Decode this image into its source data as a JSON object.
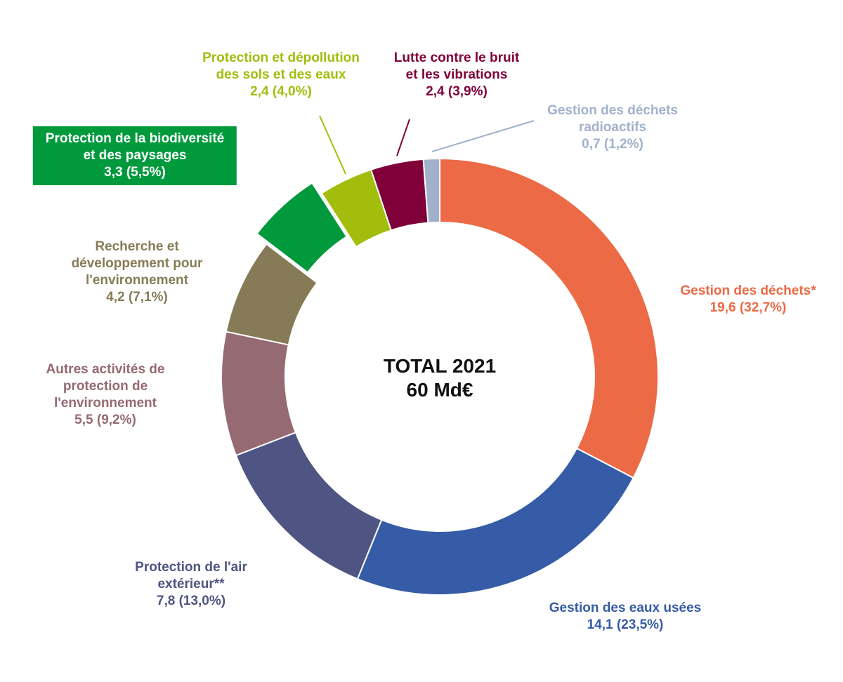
{
  "chart_data": {
    "type": "pie",
    "donut": true,
    "center_text": [
      "TOTAL 2021",
      "60 Md€"
    ],
    "unit": "Md€",
    "slices": [
      {
        "label": [
          "Gestion des déchets*"
        ],
        "value": 19.6,
        "percent": 32.7,
        "value_text": "19,6 (32,7%)",
        "color": "#ec6a45"
      },
      {
        "label": [
          "Gestion des eaux usées"
        ],
        "value": 14.1,
        "percent": 23.5,
        "value_text": "14,1 (23,5%)",
        "color": "#365ca7"
      },
      {
        "label": [
          "Protection de l'air",
          "extérieur**"
        ],
        "value": 7.8,
        "percent": 13.0,
        "value_text": "7,8 (13,0%)",
        "color": "#4f5582",
        "text_color": "#4f5582"
      },
      {
        "label": [
          "Autres activités de",
          "protection de",
          "l'environnement"
        ],
        "value": 5.5,
        "percent": 9.2,
        "value_text": "5,5 (9,2%)",
        "color": "#956a72"
      },
      {
        "label": [
          "Recherche et",
          "développement pour",
          "l'environnement"
        ],
        "value": 4.2,
        "percent": 7.1,
        "value_text": "4,2 (7,1%)",
        "color": "#877b57"
      },
      {
        "label": [
          "Protection de la biodiversité",
          "et des paysages"
        ],
        "value": 3.3,
        "percent": 5.5,
        "value_text": "3,3 (5,5%)",
        "color": "#009a3d",
        "exploded": true
      },
      {
        "label": [
          "Protection et dépollution",
          "des sols et des eaux"
        ],
        "value": 2.4,
        "percent": 4.0,
        "value_text": "2,4 (4,0%)",
        "color": "#a2bd0c"
      },
      {
        "label": [
          "Lutte contre le bruit",
          "et les vibrations"
        ],
        "value": 2.4,
        "percent": 3.9,
        "value_text": "2,4 (3,9%)",
        "color": "#80003a"
      },
      {
        "label": [
          "Gestion des déchets",
          "radioactifs"
        ],
        "value": 0.7,
        "percent": 1.2,
        "value_text": "0,7 (1,2%)",
        "color": "#a1b1cb"
      }
    ]
  }
}
